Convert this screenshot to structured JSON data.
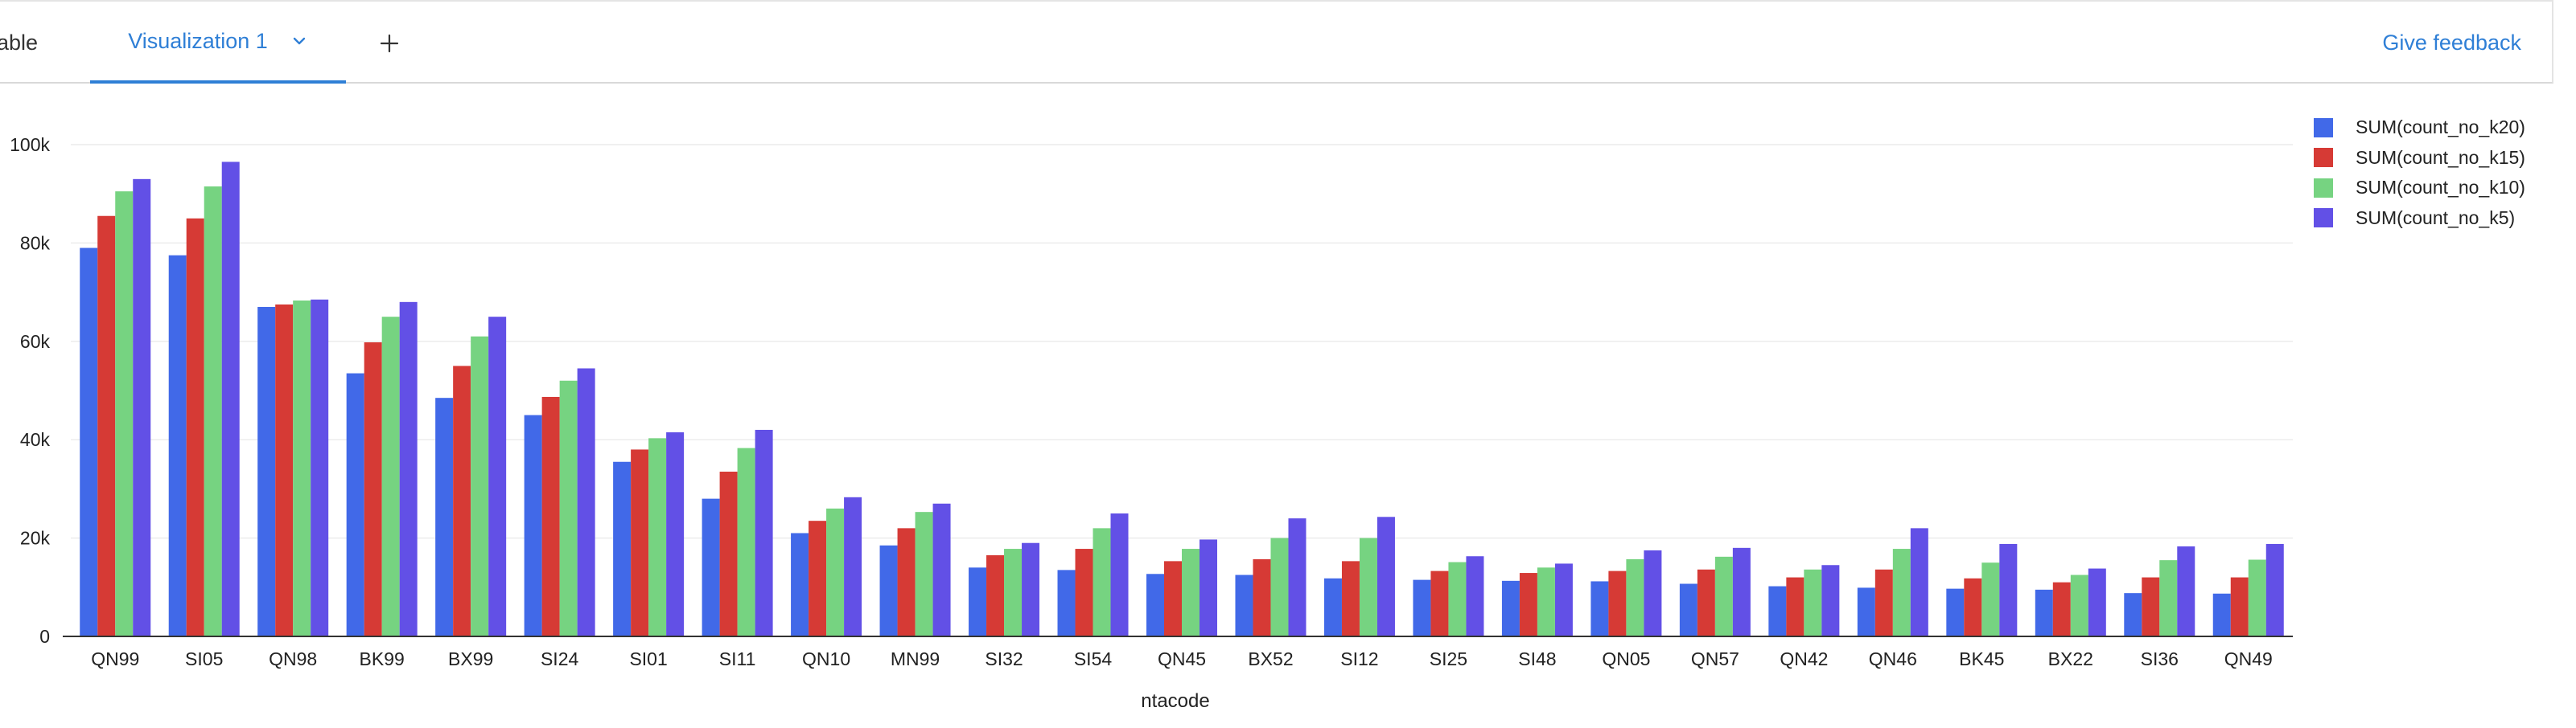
{
  "tabs": {
    "table_label": "able",
    "viz_label": "Visualization 1",
    "feedback_label": "Give feedback"
  },
  "icons": {
    "viz_dropdown": "chevron-down-icon",
    "add_tab": "plus-icon"
  },
  "colors": {
    "accent": "#2f7fd6"
  },
  "chart_data": {
    "type": "bar",
    "xlabel": "ntacode",
    "ylabel": "",
    "ylim": [
      0,
      100000
    ],
    "yticks": [
      0,
      20000,
      40000,
      60000,
      80000,
      100000
    ],
    "ytick_labels": [
      "0",
      "20k",
      "40k",
      "60k",
      "80k",
      "100k"
    ],
    "grid": true,
    "legend_position": "top-right",
    "categories": [
      "QN99",
      "SI05",
      "QN98",
      "BK99",
      "BX99",
      "SI24",
      "SI01",
      "SI11",
      "QN10",
      "MN99",
      "SI32",
      "SI54",
      "QN45",
      "BX52",
      "SI12",
      "SI25",
      "SI48",
      "QN05",
      "QN57",
      "QN42",
      "QN46",
      "BK45",
      "BX22",
      "SI36",
      "QN49"
    ],
    "series": [
      {
        "name": "SUM(count_no_k20)",
        "color": "#4169e8",
        "values": [
          79000,
          77500,
          67000,
          53500,
          48500,
          45000,
          35500,
          28000,
          21000,
          18500,
          14000,
          13500,
          12700,
          12500,
          11800,
          11500,
          11300,
          11200,
          10700,
          10200,
          9900,
          9700,
          9500,
          8800,
          8700
        ]
      },
      {
        "name": "SUM(count_no_k15)",
        "color": "#d63a35",
        "values": [
          85500,
          85000,
          67500,
          59800,
          55000,
          48700,
          38000,
          33500,
          23500,
          22000,
          16500,
          17800,
          15300,
          15700,
          15300,
          13300,
          12900,
          13300,
          13600,
          12000,
          13600,
          11800,
          11000,
          12000,
          12000
        ]
      },
      {
        "name": "SUM(count_no_k10)",
        "color": "#76d381",
        "values": [
          90500,
          91500,
          68300,
          65000,
          61000,
          52000,
          40300,
          38300,
          26000,
          25300,
          17800,
          22000,
          17800,
          20000,
          20000,
          15100,
          14000,
          15700,
          16200,
          13600,
          17800,
          15000,
          12500,
          15500,
          15600
        ]
      },
      {
        "name": "SUM(count_no_k5)",
        "color": "#6250e6",
        "values": [
          93000,
          96500,
          68500,
          68000,
          65000,
          54500,
          41500,
          42000,
          28300,
          27000,
          19000,
          25000,
          19700,
          24000,
          24300,
          16300,
          14800,
          17500,
          18000,
          14500,
          22000,
          18800,
          13800,
          18300,
          18800
        ]
      }
    ]
  }
}
